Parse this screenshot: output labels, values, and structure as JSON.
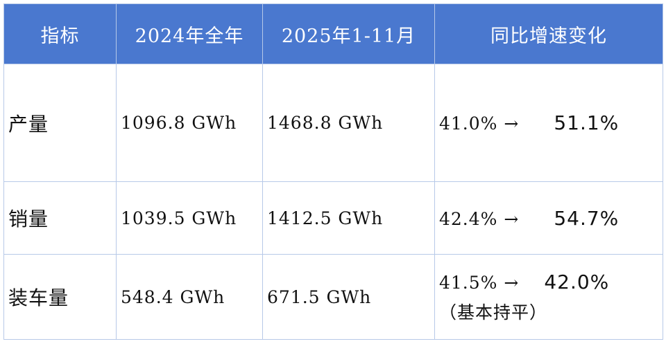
{
  "table": {
    "header": [
      "指标",
      "2024年全年",
      "2025年1-11月",
      "同比增速变化"
    ],
    "rows": [
      {
        "metric": "产量",
        "y2024": "1096.8 GWh",
        "y2025": "1468.8 GWh",
        "change": {
          "from": "41.0%",
          "arrow": "→",
          "to": "51.1%"
        }
      },
      {
        "metric": "销量",
        "y2024": "1039.5 GWh",
        "y2025": "1412.5 GWh",
        "change": {
          "from": "42.4%",
          "arrow": "→",
          "to": "54.7%"
        }
      },
      {
        "metric": "装车量",
        "y2024": "548.4 GWh",
        "y2025": "671.5 GWh",
        "change": {
          "from": "41.5%",
          "arrow": "→",
          "to": "42.0%",
          "note": "（基本持平）"
        }
      }
    ]
  }
}
